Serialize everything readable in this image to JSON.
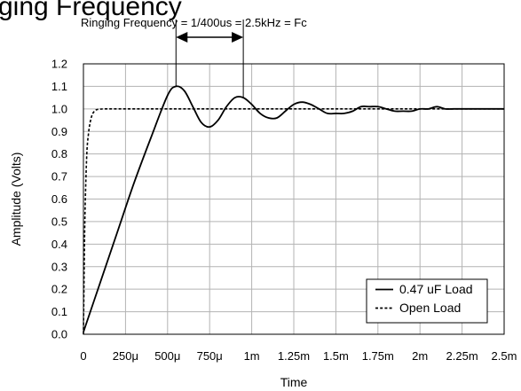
{
  "chart_data": {
    "type": "line",
    "title_fragment": "ging Frequency",
    "annotation": "Ringing Frequency = 1/400us = 2.5kHz = Fc",
    "xlabel": "Time",
    "ylabel": "Amplitude (Volts)",
    "xlim": [
      0,
      2.5
    ],
    "ylim": [
      0,
      1.2
    ],
    "x_unit": "ms",
    "x_ticks": [
      {
        "value": 0,
        "label": "0"
      },
      {
        "value": 0.25,
        "label": "250μ"
      },
      {
        "value": 0.5,
        "label": "500μ"
      },
      {
        "value": 0.75,
        "label": "750μ"
      },
      {
        "value": 1.0,
        "label": "1m"
      },
      {
        "value": 1.25,
        "label": "1.25m"
      },
      {
        "value": 1.5,
        "label": "1.5m"
      },
      {
        "value": 1.75,
        "label": "1.75m"
      },
      {
        "value": 2.0,
        "label": "2m"
      },
      {
        "value": 2.25,
        "label": "2.25m"
      },
      {
        "value": 2.5,
        "label": "2.5m"
      }
    ],
    "y_ticks": [
      "0.0",
      "0.1",
      "0.2",
      "0.3",
      "0.4",
      "0.5",
      "0.6",
      "0.7",
      "0.8",
      "0.9",
      "1.0",
      "1.1",
      "1.2"
    ],
    "grid": true,
    "legend_position": "bottom-right",
    "annotation_markers": [
      0.55,
      0.95
    ],
    "series": [
      {
        "name": "0.47 uF Load",
        "style": "solid",
        "color": "#000000",
        "x": [
          0,
          0.1,
          0.2,
          0.3,
          0.4,
          0.5,
          0.55,
          0.6,
          0.65,
          0.7,
          0.75,
          0.8,
          0.85,
          0.9,
          0.95,
          1.0,
          1.05,
          1.1,
          1.15,
          1.2,
          1.25,
          1.3,
          1.35,
          1.4,
          1.45,
          1.5,
          1.55,
          1.6,
          1.65,
          1.7,
          1.75,
          1.8,
          1.85,
          1.9,
          1.95,
          2.0,
          2.05,
          2.1,
          2.15,
          2.2,
          2.25,
          2.3,
          2.35,
          2.4,
          2.45,
          2.5
        ],
        "y": [
          0.01,
          0.23,
          0.45,
          0.67,
          0.87,
          1.06,
          1.1,
          1.08,
          1.01,
          0.94,
          0.92,
          0.95,
          1.01,
          1.05,
          1.05,
          1.02,
          0.98,
          0.96,
          0.96,
          0.99,
          1.02,
          1.03,
          1.02,
          1.0,
          0.98,
          0.98,
          0.98,
          0.99,
          1.01,
          1.01,
          1.01,
          1.0,
          0.99,
          0.99,
          0.99,
          1.0,
          1.0,
          1.01,
          1.0,
          1.0,
          1.0,
          1.0,
          1.0,
          1.0,
          1.0,
          1.0
        ]
      },
      {
        "name": "Open Load",
        "style": "dashed",
        "color": "#000000",
        "x": [
          0,
          0.005,
          0.01,
          0.02,
          0.03,
          0.04,
          0.05,
          0.06,
          0.07,
          0.08,
          0.1,
          0.12,
          0.15,
          0.3,
          0.6,
          1.0,
          1.5,
          2.0,
          2.5
        ],
        "y": [
          0.0,
          0.32,
          0.56,
          0.8,
          0.89,
          0.94,
          0.97,
          0.985,
          0.993,
          0.997,
          0.999,
          1.0,
          1.0,
          1.0,
          1.0,
          1.0,
          1.0,
          1.0,
          1.0
        ]
      }
    ]
  }
}
